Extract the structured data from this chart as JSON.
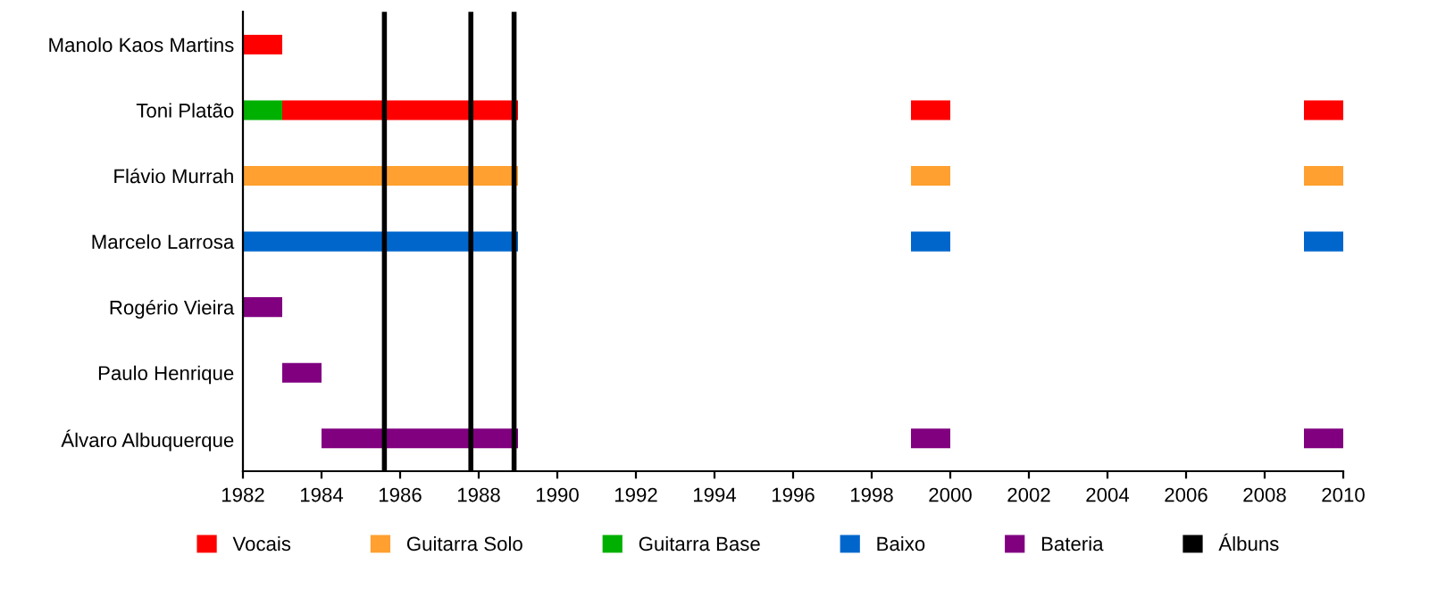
{
  "chart_data": {
    "type": "bar",
    "orientation": "horizontal",
    "categories": [
      "Manolo Kaos Martins",
      "Toni Platão",
      "Flávio Murrah",
      "Marcelo Larrosa",
      "Rogério Vieira",
      "Paulo Henrique",
      "Álvaro Albuquerque"
    ],
    "series": [
      {
        "name": "Vocais",
        "color": "#ff0000",
        "values": [
          1,
          6,
          null,
          null,
          null,
          null,
          null
        ],
        "base": [
          1982,
          1983,
          null,
          null,
          null,
          null,
          null
        ]
      },
      {
        "name": "Guitarra Solo",
        "color": "#ffa030",
        "values": [
          null,
          null,
          7,
          null,
          null,
          null,
          null
        ],
        "base": [
          null,
          null,
          1982,
          null,
          null,
          null,
          null
        ]
      },
      {
        "name": "Guitarra Base",
        "color": "#00b000",
        "values": [
          null,
          1,
          null,
          null,
          null,
          null,
          null
        ],
        "base": [
          null,
          1982,
          null,
          null,
          null,
          null,
          null
        ]
      },
      {
        "name": "Baixo",
        "color": "#0066cc",
        "values": [
          null,
          null,
          null,
          7,
          null,
          null,
          null
        ],
        "base": [
          null,
          null,
          null,
          1982,
          null,
          null,
          null
        ]
      },
      {
        "name": "Bateria",
        "color": "#800080",
        "values": [
          null,
          null,
          null,
          null,
          1,
          1,
          5
        ],
        "base": [
          null,
          null,
          null,
          null,
          1982,
          1983,
          1984
        ]
      },
      {
        "colors": [
          null,
          "#ff0000",
          "#ffa030",
          "#0066cc",
          null,
          null,
          "#800080"
        ],
        "values": [
          null,
          1,
          1,
          1,
          null,
          null,
          1
        ],
        "base": [
          null,
          1999,
          1999,
          1999,
          null,
          null,
          1999
        ]
      },
      {
        "colors": [
          null,
          "#ff0000",
          "#ffa030",
          "#0066cc",
          null,
          null,
          "#800080"
        ],
        "values": [
          null,
          1,
          1,
          1,
          null,
          null,
          1
        ],
        "base": [
          null,
          2009,
          2009,
          2009,
          null,
          null,
          2009
        ]
      }
    ],
    "ref_lines": [
      {
        "axis": "x",
        "value": 1985.6,
        "label": "Álbuns",
        "color": "#000000"
      },
      {
        "axis": "x",
        "value": 1987.8,
        "color": "#000000"
      },
      {
        "axis": "x",
        "value": 1988.9,
        "color": "#000000"
      }
    ],
    "xlim": [
      1982,
      2010
    ],
    "xticks": [
      1982,
      1984,
      1986,
      1988,
      1990,
      1992,
      1994,
      1996,
      1998,
      2000,
      2002,
      2004,
      2006,
      2008,
      2010
    ],
    "grid": false,
    "legend": "bottom"
  }
}
